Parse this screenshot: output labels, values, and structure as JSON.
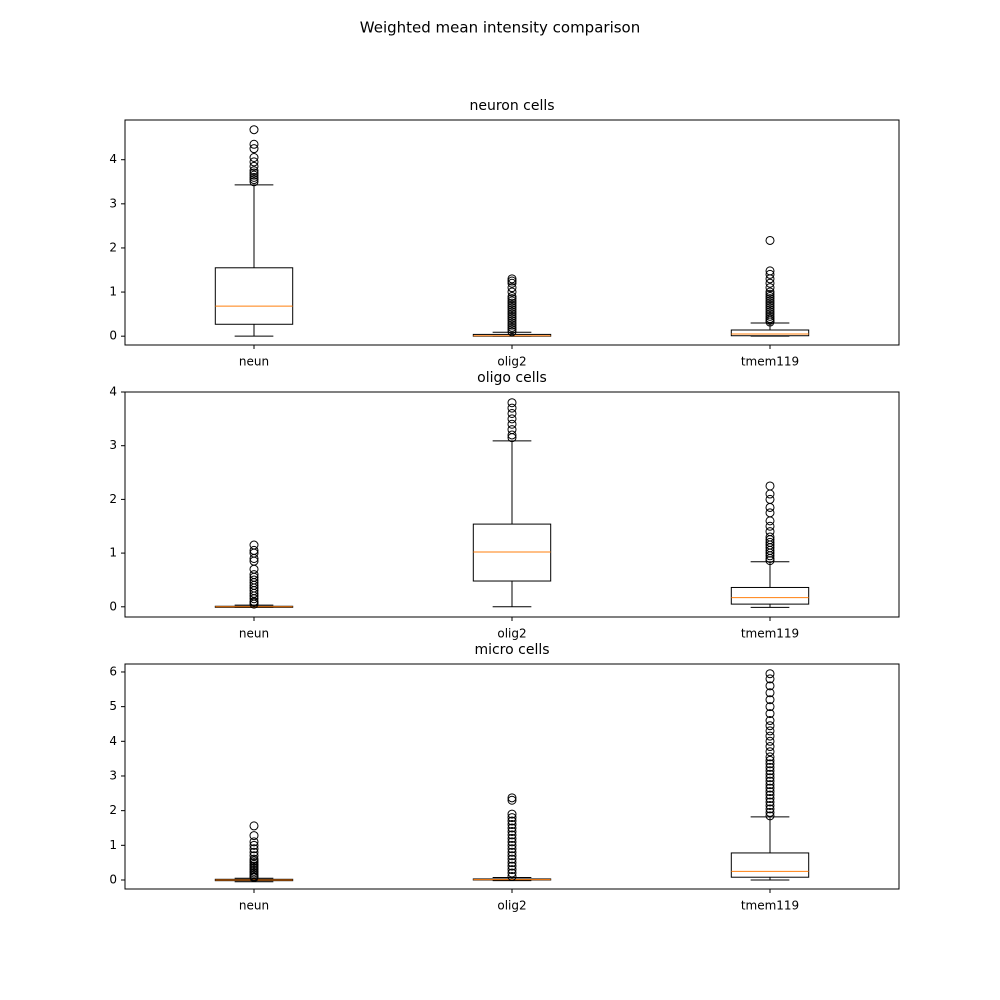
{
  "title": "Weighted mean intensity comparison",
  "chart_data": [
    {
      "type": "box",
      "title": "neuron cells",
      "categories": [
        "neun",
        "olig2",
        "tmem119"
      ],
      "color": "#000000",
      "median_color": "#ff7f0e",
      "ylim": [
        -0.2,
        4.9
      ],
      "yticks": [
        0,
        1,
        2,
        3,
        4
      ],
      "boxes": [
        {
          "whislo": 0,
          "q1": 0.27,
          "med": 0.68,
          "q3": 1.55,
          "whishi": 3.43,
          "fliers": [
            3.5,
            3.55,
            3.6,
            3.65,
            3.7,
            3.75,
            3.85,
            3.95,
            4.05,
            4.25,
            4.35,
            4.68
          ]
        },
        {
          "whislo": 0,
          "q1": 0,
          "med": 0.01,
          "q3": 0.04,
          "whishi": 0.09,
          "fliers": [
            0.1,
            0.15,
            0.2,
            0.25,
            0.3,
            0.35,
            0.4,
            0.45,
            0.5,
            0.55,
            0.6,
            0.65,
            0.7,
            0.75,
            0.8,
            0.85,
            0.9,
            1.0,
            1.1,
            1.2,
            1.25,
            1.3
          ]
        },
        {
          "whislo": 0,
          "q1": 0.01,
          "med": 0.05,
          "q3": 0.14,
          "whishi": 0.3,
          "fliers": [
            0.32,
            0.36,
            0.4,
            0.45,
            0.5,
            0.55,
            0.6,
            0.65,
            0.7,
            0.75,
            0.8,
            0.85,
            0.9,
            0.95,
            1.0,
            1.1,
            1.2,
            1.3,
            1.4,
            1.48,
            2.17
          ]
        }
      ]
    },
    {
      "type": "box",
      "title": "oligo cells",
      "categories": [
        "neun",
        "olig2",
        "tmem119"
      ],
      "color": "#000000",
      "median_color": "#ff7f0e",
      "ylim": [
        -0.19,
        4.0
      ],
      "yticks": [
        0,
        1,
        2,
        3,
        4
      ],
      "boxes": [
        {
          "whislo": -0.01,
          "q1": -0.01,
          "med": 0,
          "q3": 0.01,
          "whishi": 0.03,
          "fliers": [
            0.05,
            0.08,
            0.1,
            0.15,
            0.2,
            0.25,
            0.3,
            0.35,
            0.4,
            0.45,
            0.5,
            0.55,
            0.6,
            0.7,
            0.85,
            0.9,
            1.0,
            1.05,
            1.15
          ]
        },
        {
          "whislo": 0,
          "q1": 0.48,
          "med": 1.02,
          "q3": 1.54,
          "whishi": 3.09,
          "fliers": [
            3.15,
            3.2,
            3.3,
            3.4,
            3.5,
            3.6,
            3.7,
            3.8
          ]
        },
        {
          "whislo": -0.01,
          "q1": 0.05,
          "med": 0.17,
          "q3": 0.36,
          "whishi": 0.84,
          "fliers": [
            0.86,
            0.9,
            0.95,
            1.0,
            1.05,
            1.1,
            1.15,
            1.2,
            1.25,
            1.3,
            1.4,
            1.5,
            1.6,
            1.75,
            1.85,
            2.0,
            2.1,
            2.25
          ]
        }
      ]
    },
    {
      "type": "box",
      "title": "micro cells",
      "categories": [
        "neun",
        "olig2",
        "tmem119"
      ],
      "color": "#000000",
      "median_color": "#ff7f0e",
      "ylim": [
        -0.26,
        6.23
      ],
      "yticks": [
        0,
        1,
        2,
        3,
        4,
        5,
        6
      ],
      "boxes": [
        {
          "whislo": -0.05,
          "q1": -0.02,
          "med": 0,
          "q3": 0.02,
          "whishi": 0.05,
          "fliers": [
            0.07,
            0.1,
            0.15,
            0.2,
            0.25,
            0.3,
            0.35,
            0.4,
            0.45,
            0.5,
            0.55,
            0.6,
            0.7,
            0.8,
            0.9,
            1.0,
            1.1,
            1.28,
            1.56
          ]
        },
        {
          "whislo": -0.02,
          "q1": 0,
          "med": 0.01,
          "q3": 0.03,
          "whishi": 0.07,
          "fliers": [
            0.1,
            0.2,
            0.3,
            0.4,
            0.5,
            0.6,
            0.7,
            0.8,
            0.9,
            1.0,
            1.1,
            1.2,
            1.3,
            1.4,
            1.5,
            1.6,
            1.7,
            1.8,
            1.9,
            2.3,
            2.37
          ]
        },
        {
          "whislo": 0,
          "q1": 0.08,
          "med": 0.25,
          "q3": 0.78,
          "whishi": 1.82,
          "fliers": [
            1.85,
            1.95,
            2.05,
            2.15,
            2.25,
            2.35,
            2.45,
            2.55,
            2.65,
            2.75,
            2.85,
            2.95,
            3.05,
            3.15,
            3.25,
            3.35,
            3.45,
            3.55,
            3.7,
            3.85,
            4.0,
            4.15,
            4.3,
            4.45,
            4.6,
            4.8,
            5.0,
            5.2,
            5.4,
            5.6,
            5.8,
            5.95
          ]
        }
      ]
    }
  ]
}
